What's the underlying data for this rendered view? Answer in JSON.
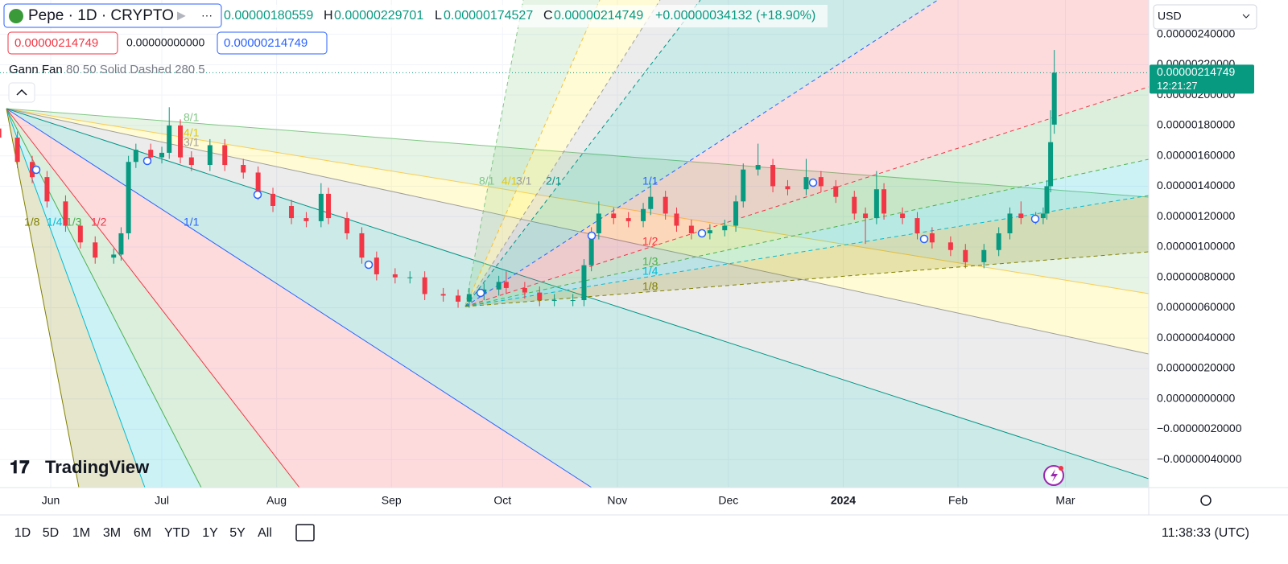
{
  "header": {
    "symbol": "Pepe · 1D · CRYPTO",
    "open_value": "0.00000180559",
    "high_label": "H",
    "high_value": "0.00000229701",
    "low_label": "L",
    "low_value": "0.00000174527",
    "close_label": "C",
    "close_value": "0.00000214749",
    "change": "+0.00000034132 (+18.90%)"
  },
  "legend": {
    "sell": "0.00000214749",
    "spread": "0.00000000000",
    "buy": "0.00000214749",
    "study_name": "Gann Fan",
    "study_params": "80 50 Solid Dashed 280 5"
  },
  "currency": "USD",
  "price_tag": {
    "price": "0.00000214749",
    "countdown": "12:21:27"
  },
  "gann_fan": {
    "fan_a_labels": [
      "8/1",
      "4/1",
      "3/1",
      "1/8",
      "1/4",
      "1/3",
      "1/2",
      "1/1"
    ],
    "fan_b_labels": [
      "8/1",
      "4/1",
      "3/1",
      "2/1",
      "1/1",
      "1/2",
      "1/3",
      "1/4",
      "1/8"
    ]
  },
  "brand": "TradingView",
  "toolbar": {
    "ranges": [
      "1D",
      "5D",
      "1M",
      "3M",
      "6M",
      "YTD",
      "1Y",
      "5Y",
      "All"
    ],
    "clock": "11:38:33 (UTC)"
  },
  "chart_data": {
    "type": "candlestick",
    "up_color": "#089981",
    "down_color": "#f23645",
    "grid": true,
    "x": [
      -14,
      -9,
      -5,
      -1,
      4,
      8,
      12,
      17,
      19,
      21,
      23,
      27,
      30,
      32,
      35,
      38,
      43,
      47,
      52,
      56,
      60,
      65,
      69,
      73,
      75,
      80,
      84,
      88,
      93,
      97,
      101,
      106,
      110,
      113,
      117,
      121,
      123,
      128,
      132,
      136,
      141,
      144,
      146,
      148,
      152,
      156,
      160,
      162,
      166,
      169,
      173,
      178,
      182,
      185,
      187,
      191,
      195,
      199,
      204,
      208,
      212,
      217,
      220,
      223,
      225,
      230,
      234,
      238,
      243,
      247,
      252,
      256,
      259,
      262,
      266,
      268,
      269,
      270,
      271
    ],
    "open": [
      1.78e-06,
      1.72e-06,
      1.56e-06,
      1.46e-06,
      1.3e-06,
      1.14e-06,
      1.03e-06,
      9.3e-07,
      9.5e-07,
      1.09e-06,
      1.56e-06,
      1.64e-06,
      1.59e-06,
      1.62e-06,
      1.8e-06,
      1.59e-06,
      1.54e-06,
      1.67e-06,
      1.54e-06,
      1.49e-06,
      1.35e-06,
      1.27e-06,
      1.19e-06,
      1.17e-06,
      1.35e-06,
      1.19e-06,
      1.09e-06,
      9.3e-07,
      8.2e-07,
      8e-07,
      8e-07,
      6.9e-07,
      6.8e-07,
      6.4e-07,
      6.9e-07,
      7.2e-07,
      7.7e-07,
      7.3e-07,
      7e-07,
      6.5e-07,
      6.5e-07,
      6.5e-07,
      8.8e-07,
      1.09e-06,
      1.22e-06,
      1.19e-06,
      1.17e-06,
      1.25e-06,
      1.33e-06,
      1.22e-06,
      1.14e-06,
      1.09e-06,
      1.11e-06,
      1.14e-06,
      1.3e-06,
      1.51e-06,
      1.54e-06,
      1.4e-06,
      1.38e-06,
      1.46e-06,
      1.4e-06,
      1.33e-06,
      1.22e-06,
      1.19e-06,
      1.38e-06,
      1.22e-06,
      1.19e-06,
      1.09e-06,
      1.03e-06,
      9.8e-07,
      9e-07,
      9.8e-07,
      1.09e-06,
      1.22e-06,
      1.19e-06,
      1.19e-06,
      1.22e-06,
      1.4e-06,
      1.80559e-06
    ],
    "high": [
      1.82e-06,
      1.76e-06,
      1.6e-06,
      1.5e-06,
      1.34e-06,
      1.18e-06,
      1.07e-06,
      9.9e-07,
      1.13e-06,
      1.6e-06,
      1.68e-06,
      1.68e-06,
      1.66e-06,
      1.92e-06,
      1.84e-06,
      1.63e-06,
      1.71e-06,
      1.71e-06,
      1.58e-06,
      1.53e-06,
      1.39e-06,
      1.31e-06,
      1.23e-06,
      1.42e-06,
      1.39e-06,
      1.23e-06,
      1.13e-06,
      9.7e-07,
      8.6e-07,
      8.4e-07,
      8.4e-07,
      7.3e-07,
      7.2e-07,
      7.3e-07,
      7.6e-07,
      8.1e-07,
      8.4e-07,
      7.7e-07,
      7.4e-07,
      6.9e-07,
      6.9e-07,
      9.2e-07,
      1.13e-06,
      1.3e-06,
      1.26e-06,
      1.23e-06,
      1.29e-06,
      1.42e-06,
      1.37e-06,
      1.26e-06,
      1.18e-06,
      1.15e-06,
      1.18e-06,
      1.34e-06,
      1.55e-06,
      1.68e-06,
      1.58e-06,
      1.44e-06,
      1.58e-06,
      1.5e-06,
      1.44e-06,
      1.37e-06,
      1.26e-06,
      1.5e-06,
      1.42e-06,
      1.26e-06,
      1.23e-06,
      1.13e-06,
      1.07e-06,
      1.02e-06,
      1.02e-06,
      1.13e-06,
      1.26e-06,
      1.3e-06,
      1.23e-06,
      1.26e-06,
      1.44e-06,
      1.9e-06,
      2.29701e-06
    ],
    "low": [
      1.68e-06,
      1.52e-06,
      1.42e-06,
      1.26e-06,
      1.1e-06,
      9.9e-07,
      8.9e-07,
      8.9e-07,
      9.1e-07,
      1.05e-06,
      1.52e-06,
      1.55e-06,
      1.55e-06,
      1.58e-06,
      1.55e-06,
      1.5e-06,
      1.5e-06,
      1.5e-06,
      1.45e-06,
      1.31e-06,
      1.23e-06,
      1.15e-06,
      1.13e-06,
      1.13e-06,
      1.15e-06,
      1.05e-06,
      8.9e-07,
      7.8e-07,
      7.6e-07,
      7.6e-07,
      6.5e-07,
      6.4e-07,
      6e-07,
      6e-07,
      6.5e-07,
      6.8e-07,
      6.9e-07,
      6.6e-07,
      6.1e-07,
      6.1e-07,
      6.1e-07,
      6.1e-07,
      8.4e-07,
      1.05e-06,
      1.15e-06,
      1.13e-06,
      1.13e-06,
      1.21e-06,
      1.18e-06,
      1.1e-06,
      1.05e-06,
      1.05e-06,
      1.07e-06,
      1.1e-06,
      1.26e-06,
      1.47e-06,
      1.36e-06,
      1.34e-06,
      1.34e-06,
      1.36e-06,
      1.29e-06,
      1.18e-06,
      1.02e-06,
      1.15e-06,
      1.18e-06,
      1.15e-06,
      1.05e-06,
      9.9e-07,
      9.4e-07,
      8.6e-07,
      8.6e-07,
      9.4e-07,
      1.05e-06,
      1.15e-06,
      1.15e-06,
      1.15e-06,
      1.18e-06,
      1.36e-06,
      1.74527e-06
    ],
    "close": [
      1.72e-06,
      1.56e-06,
      1.46e-06,
      1.3e-06,
      1.14e-06,
      1.03e-06,
      9.3e-07,
      9.5e-07,
      1.09e-06,
      1.56e-06,
      1.64e-06,
      1.59e-06,
      1.62e-06,
      1.8e-06,
      1.59e-06,
      1.54e-06,
      1.67e-06,
      1.54e-06,
      1.49e-06,
      1.35e-06,
      1.27e-06,
      1.19e-06,
      1.17e-06,
      1.35e-06,
      1.19e-06,
      1.09e-06,
      9.3e-07,
      8.2e-07,
      8e-07,
      8e-07,
      6.9e-07,
      6.8e-07,
      6.4e-07,
      6.9e-07,
      7.2e-07,
      7.7e-07,
      7.3e-07,
      7e-07,
      6.5e-07,
      6.5e-07,
      6.5e-07,
      8.8e-07,
      1.09e-06,
      1.22e-06,
      1.19e-06,
      1.17e-06,
      1.25e-06,
      1.33e-06,
      1.22e-06,
      1.14e-06,
      1.09e-06,
      1.11e-06,
      1.14e-06,
      1.3e-06,
      1.51e-06,
      1.54e-06,
      1.4e-06,
      1.38e-06,
      1.46e-06,
      1.4e-06,
      1.33e-06,
      1.22e-06,
      1.19e-06,
      1.38e-06,
      1.22e-06,
      1.19e-06,
      1.09e-06,
      1.03e-06,
      9.8e-07,
      9e-07,
      9.8e-07,
      1.09e-06,
      1.22e-06,
      1.19e-06,
      1.19e-06,
      1.22e-06,
      1.4e-06,
      1.69e-06,
      2.14749e-06
    ],
    "xlim": [
      -13.7,
      296.5
    ],
    "xticks": [
      {
        "value": 0,
        "label": "Jun"
      },
      {
        "value": 30,
        "label": "Jul"
      },
      {
        "value": 61,
        "label": "Aug"
      },
      {
        "value": 92,
        "label": "Sep"
      },
      {
        "value": 122,
        "label": "Oct"
      },
      {
        "value": 153,
        "label": "Nov"
      },
      {
        "value": 183,
        "label": "Dec"
      },
      {
        "value": 214,
        "label": "2024"
      },
      {
        "value": 245,
        "label": "Feb"
      },
      {
        "value": 274,
        "label": "Mar"
      }
    ],
    "ylim": [
      -5.84e-07,
      2.626e-06
    ],
    "yticks": [
      {
        "value": 2.4e-06,
        "label": "0.00000240000"
      },
      {
        "value": 2.2e-06,
        "label": "0.00000220000"
      },
      {
        "value": 2e-06,
        "label": "0.00000200000"
      },
      {
        "value": 1.8e-06,
        "label": "0.00000180000"
      },
      {
        "value": 1.6e-06,
        "label": "0.00000160000"
      },
      {
        "value": 1.4e-06,
        "label": "0.00000140000"
      },
      {
        "value": 1.2e-06,
        "label": "0.00000120000"
      },
      {
        "value": 1e-06,
        "label": "0.00000100000"
      },
      {
        "value": 8e-07,
        "label": "0.00000080000"
      },
      {
        "value": 6e-07,
        "label": "0.00000060000"
      },
      {
        "value": 4e-07,
        "label": "0.00000040000"
      },
      {
        "value": 2e-07,
        "label": "0.00000020000"
      },
      {
        "value": 0,
        "label": "0.00000000000"
      },
      {
        "value": -2e-07,
        "label": "−0.00000020000"
      },
      {
        "value": -4e-07,
        "label": "−0.00000040000"
      }
    ]
  }
}
